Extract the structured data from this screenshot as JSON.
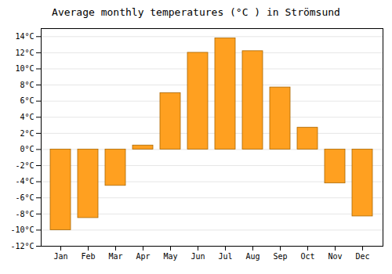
{
  "chart_data": {
    "type": "bar",
    "title": "Average monthly temperatures (°C ) in Strömsund",
    "categories": [
      "Jan",
      "Feb",
      "Mar",
      "Apr",
      "May",
      "Jun",
      "Jul",
      "Aug",
      "Sep",
      "Oct",
      "Nov",
      "Dec"
    ],
    "values": [
      -10,
      -8.5,
      -4.5,
      0.5,
      7,
      12,
      13.8,
      12.2,
      7.7,
      2.7,
      -4.2,
      -8.3
    ],
    "color": "#FFA020",
    "ylim": [
      -12,
      15
    ],
    "yticks": [
      {
        "value": -12,
        "label": "-12°C"
      },
      {
        "value": -10,
        "label": "-10°C"
      },
      {
        "value": -8,
        "label": "-8°C"
      },
      {
        "value": -6,
        "label": "-6°C"
      },
      {
        "value": -4,
        "label": "-4°C"
      },
      {
        "value": -2,
        "label": "-2°C"
      },
      {
        "value": 0,
        "label": "0°C"
      },
      {
        "value": 2,
        "label": "2°C"
      },
      {
        "value": 4,
        "label": "4°C"
      },
      {
        "value": 6,
        "label": "6°C"
      },
      {
        "value": 8,
        "label": "8°C"
      },
      {
        "value": 10,
        "label": "10°C"
      },
      {
        "value": 12,
        "label": "12°C"
      },
      {
        "value": 14,
        "label": "14°C"
      }
    ],
    "grid": true
  }
}
